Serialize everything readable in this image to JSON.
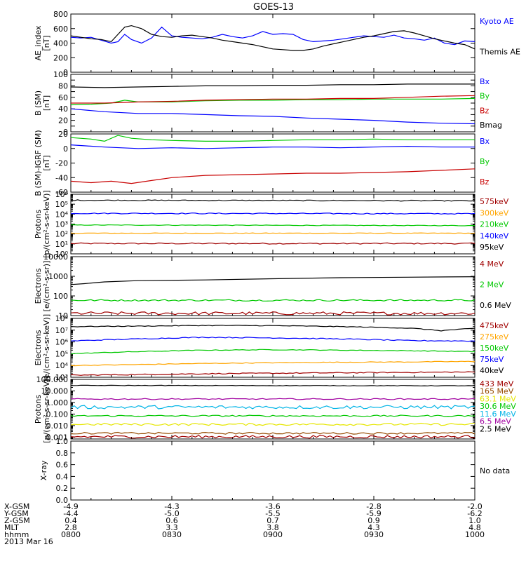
{
  "title": "GOES-13",
  "date": "2013 Mar 16",
  "colors": {
    "black": "#000000",
    "blue": "#0000ff",
    "green": "#00c800",
    "red": "#c80000",
    "orange": "#ffa500",
    "yellow": "#e6e600",
    "cyan": "#00b4e6",
    "purple": "#a000a0",
    "darkred": "#a00000",
    "brown": "#964b00"
  },
  "chart_data": [
    {
      "type": "line",
      "scale": "linear",
      "ylabel": "AE_index\n[nT]",
      "ylim": [
        0,
        800
      ],
      "yticks": [
        0,
        200,
        400,
        600,
        800
      ],
      "ytick_labels": [
        "0",
        "200",
        "400",
        "600",
        "800"
      ],
      "series": [
        {
          "name": "Kyoto AE",
          "color": "#0000ff",
          "x": [
            0,
            1.5,
            3,
            4.5,
            6,
            7,
            8,
            9,
            10.5,
            12,
            13.5,
            15,
            16.5,
            18,
            19.5,
            21,
            22.5,
            24,
            25.5,
            27,
            28.5,
            30,
            31.5,
            33,
            34.5,
            36,
            37.5,
            39,
            40.5,
            42,
            43.5,
            45,
            46.5,
            48,
            49.5,
            51,
            52.5,
            54,
            55.5,
            57,
            58.5,
            60
          ],
          "y": [
            480,
            470,
            480,
            440,
            400,
            420,
            520,
            450,
            400,
            470,
            620,
            500,
            480,
            470,
            460,
            480,
            520,
            490,
            470,
            500,
            560,
            520,
            530,
            520,
            450,
            420,
            430,
            440,
            460,
            480,
            500,
            490,
            480,
            510,
            470,
            460,
            440,
            470,
            400,
            380,
            430,
            420
          ]
        },
        {
          "name": "Themis AE",
          "color": "#000000",
          "x": [
            0,
            1.5,
            3,
            4.5,
            6,
            7,
            8,
            9,
            10.5,
            12,
            13.5,
            15,
            16.5,
            18,
            19.5,
            21,
            22.5,
            24,
            25.5,
            27,
            28.5,
            30,
            31.5,
            33,
            34.5,
            36,
            37.5,
            39,
            40.5,
            42,
            43.5,
            45,
            46.5,
            48,
            49.5,
            51,
            52.5,
            54,
            55.5,
            57,
            58.5,
            60
          ],
          "y": [
            500,
            480,
            460,
            450,
            420,
            520,
            620,
            640,
            600,
            520,
            490,
            480,
            500,
            510,
            490,
            470,
            440,
            420,
            400,
            380,
            350,
            320,
            310,
            300,
            300,
            320,
            360,
            390,
            420,
            450,
            480,
            500,
            530,
            560,
            570,
            540,
            500,
            460,
            430,
            400,
            380,
            320
          ]
        }
      ]
    },
    {
      "type": "line",
      "scale": "linear",
      "ylabel": "B (SM)\n[nT]",
      "ylim": [
        0,
        100
      ],
      "yticks": [
        0,
        10,
        20,
        30,
        40,
        50,
        60,
        70,
        80,
        90,
        100
      ],
      "ytick_labels": [
        "0",
        "",
        "20",
        "",
        "40",
        "",
        "60",
        "",
        "80",
        "",
        "100"
      ],
      "series": [
        {
          "name": "Bx",
          "color": "#0000ff",
          "x": [
            0,
            5,
            10,
            15,
            20,
            25,
            30,
            35,
            40,
            45,
            50,
            55,
            60
          ],
          "y": [
            40,
            35,
            32,
            32,
            30,
            28,
            27,
            24,
            22,
            20,
            17,
            15,
            14
          ]
        },
        {
          "name": "By",
          "color": "#00c800",
          "x": [
            0,
            3,
            6,
            8,
            10,
            15,
            20,
            25,
            30,
            35,
            40,
            45,
            50,
            55,
            60
          ],
          "y": [
            47,
            48,
            50,
            55,
            52,
            52,
            54,
            55,
            55,
            56,
            56,
            57,
            57,
            57,
            58
          ]
        },
        {
          "name": "Bz",
          "color": "#c80000",
          "x": [
            0,
            5,
            10,
            15,
            20,
            25,
            30,
            35,
            40,
            45,
            50,
            55,
            60
          ],
          "y": [
            50,
            50,
            52,
            53,
            55,
            56,
            57,
            57,
            58,
            58,
            60,
            62,
            63
          ]
        },
        {
          "name": "Bmag",
          "color": "#000000",
          "x": [
            0,
            5,
            10,
            15,
            20,
            25,
            30,
            35,
            40,
            45,
            50,
            55,
            60
          ],
          "y": [
            78,
            77,
            78,
            79,
            80,
            80,
            81,
            81,
            82,
            82,
            83,
            83,
            83
          ]
        }
      ]
    },
    {
      "type": "line",
      "scale": "linear",
      "ylabel": "B (SM)-IGRF (SM)\n[nT]",
      "ylim": [
        -60,
        20
      ],
      "yticks": [
        -60,
        -40,
        -20,
        0,
        20
      ],
      "ytick_labels": [
        "-60",
        "-40",
        "-20",
        "0",
        "20"
      ],
      "series": [
        {
          "name": "Bx",
          "color": "#0000ff",
          "x": [
            0,
            5,
            10,
            15,
            20,
            25,
            30,
            35,
            40,
            45,
            50,
            55,
            60
          ],
          "y": [
            5,
            2,
            0,
            1,
            0,
            1,
            2,
            2,
            1,
            2,
            3,
            2,
            2
          ]
        },
        {
          "name": "By",
          "color": "#00c800",
          "x": [
            0,
            3,
            5,
            7,
            9,
            12,
            15,
            20,
            25,
            30,
            35,
            40,
            45,
            50,
            55,
            60
          ],
          "y": [
            15,
            13,
            10,
            18,
            14,
            12,
            11,
            10,
            10,
            11,
            12,
            12,
            13,
            12,
            12,
            12
          ]
        },
        {
          "name": "Bz",
          "color": "#c80000",
          "x": [
            0,
            3,
            6,
            9,
            12,
            15,
            20,
            25,
            30,
            35,
            40,
            45,
            50,
            55,
            60
          ],
          "y": [
            -45,
            -47,
            -45,
            -48,
            -44,
            -40,
            -37,
            -36,
            -35,
            -34,
            -34,
            -33,
            -32,
            -30,
            -28
          ]
        }
      ]
    },
    {
      "type": "line",
      "scale": "log",
      "ylabel": "Protons\n[p/(cm²-s-sr-keV)]",
      "ylim": [
        1,
        1000000
      ],
      "yticks": [
        1,
        10,
        100,
        1000,
        10000,
        100000,
        1000000
      ],
      "ytick_labels": [
        "10⁰",
        "10¹",
        "10²",
        "10³",
        "10⁴",
        "10⁵",
        "10⁶"
      ],
      "series": [
        {
          "name": "575keV",
          "color": "#a00000",
          "x": [
            0,
            60
          ],
          "y": [
            11,
            11
          ],
          "noise": 0.06
        },
        {
          "name": "300keV",
          "color": "#ffa500",
          "x": [
            0,
            60
          ],
          "y": [
            120,
            120
          ],
          "noise": 0.03
        },
        {
          "name": "210keV",
          "color": "#00c800",
          "x": [
            0,
            60
          ],
          "y": [
            800,
            700
          ],
          "noise": 0.03
        },
        {
          "name": "140keV",
          "color": "#0000ff",
          "x": [
            0,
            60
          ],
          "y": [
            12000,
            11000
          ],
          "noise": 0.05
        },
        {
          "name": "95keV",
          "color": "#000000",
          "x": [
            0,
            60
          ],
          "y": [
            250000,
            220000
          ],
          "noise": 0.05
        }
      ]
    },
    {
      "type": "line",
      "scale": "log",
      "ylabel": "Electrons\n[e/(cm²-s-sr)]",
      "ylim": [
        10,
        10000
      ],
      "yticks": [
        10,
        100,
        1000,
        10000
      ],
      "ytick_labels": [
        "10",
        "100",
        "1000",
        "10000"
      ],
      "series": [
        {
          "name": "4 MeV",
          "color": "#a00000",
          "x": [
            0,
            60
          ],
          "y": [
            13,
            13
          ],
          "noise": 0.08
        },
        {
          "name": "2 MeV",
          "color": "#00c800",
          "x": [
            0,
            60
          ],
          "y": [
            60,
            60
          ],
          "noise": 0.04
        },
        {
          "name": "0.6 MeV",
          "color": "#000000",
          "x": [
            0,
            2,
            5,
            10,
            20,
            30,
            40,
            50,
            60
          ],
          "y": [
            380,
            420,
            520,
            600,
            650,
            750,
            850,
            900,
            950
          ]
        }
      ]
    },
    {
      "type": "line",
      "scale": "log",
      "ylabel": "Electrons\n[e/(cm²-s-sr-keV)]",
      "ylim": [
        1000,
        100000000
      ],
      "yticks": [
        1000,
        10000,
        100000,
        1000000,
        10000000,
        100000000
      ],
      "ytick_labels": [
        "10³",
        "10⁴",
        "10⁵",
        "10⁶",
        "10⁷",
        "10⁸"
      ],
      "series": [
        {
          "name": "475keV",
          "color": "#a00000",
          "x": [
            0,
            10,
            20,
            30,
            40,
            50,
            60
          ],
          "y": [
            1500,
            1700,
            2000,
            2200,
            2400,
            2600,
            2800
          ],
          "noise": 0.04
        },
        {
          "name": "275keV",
          "color": "#ffa500",
          "x": [
            0,
            10,
            20,
            30,
            40,
            50,
            60
          ],
          "y": [
            10000,
            12000,
            15000,
            17000,
            19000,
            20000,
            22000
          ],
          "noise": 0.03
        },
        {
          "name": "150keV",
          "color": "#00c800",
          "x": [
            0,
            10,
            20,
            30,
            40,
            50,
            60
          ],
          "y": [
            100000,
            150000,
            200000,
            220000,
            200000,
            180000,
            150000
          ],
          "noise": 0.03
        },
        {
          "name": "75keV",
          "color": "#0000ff",
          "x": [
            0,
            10,
            20,
            30,
            40,
            50,
            60
          ],
          "y": [
            1200000,
            1800000,
            2500000,
            2200000,
            1800000,
            1300000,
            1200000
          ],
          "noise": 0.04
        },
        {
          "name": "40keV",
          "color": "#000000",
          "x": [
            0,
            10,
            20,
            30,
            40,
            50,
            55,
            60
          ],
          "y": [
            20000000,
            22000000,
            25000000,
            24000000,
            20000000,
            15000000,
            9000000,
            14000000
          ],
          "noise": 0.03
        }
      ]
    },
    {
      "type": "line",
      "scale": "log",
      "ylabel": "Protons\n[p/(cm²-s-sr-keV)]",
      "ylim": [
        0.0007,
        100
      ],
      "yticks": [
        0.001,
        0.01,
        0.1,
        1,
        10,
        100
      ],
      "ytick_labels": [
        "0.001",
        "0.010",
        "0.100",
        "1.000",
        "10.000",
        "100.000"
      ],
      "series": [
        {
          "name": "433 MeV",
          "color": "#a00000",
          "x": [
            0,
            60
          ],
          "y": [
            0.0011,
            0.0011
          ],
          "noise": 0.12
        },
        {
          "name": "165 MeV",
          "color": "#964b00",
          "x": [
            0,
            60
          ],
          "y": [
            0.0022,
            0.0022
          ],
          "noise": 0.08
        },
        {
          "name": "63.1 MeV",
          "color": "#e6e600",
          "x": [
            0,
            60
          ],
          "y": [
            0.013,
            0.013
          ],
          "noise": 0.1
        },
        {
          "name": "30.6 MeV",
          "color": "#00c800",
          "x": [
            0,
            60
          ],
          "y": [
            0.07,
            0.07
          ],
          "noise": 0.06
        },
        {
          "name": "11.6 MeV",
          "color": "#00b4e6",
          "x": [
            0,
            60
          ],
          "y": [
            0.4,
            0.4
          ],
          "noise": 0.15
        },
        {
          "name": "6.5 MeV",
          "color": "#a000a0",
          "x": [
            0,
            60
          ],
          "y": [
            2,
            2
          ],
          "noise": 0.05
        },
        {
          "name": "2.5 MeV",
          "color": "#000000",
          "x": [
            0,
            60
          ],
          "y": [
            30,
            28
          ],
          "noise": 0.02
        }
      ]
    },
    {
      "type": "line",
      "scale": "linear",
      "ylabel": "X-ray",
      "ylim": [
        0,
        1
      ],
      "yticks": [
        0,
        0.2,
        0.4,
        0.6,
        0.8,
        1.0
      ],
      "ytick_labels": [
        "0.0",
        "0.2",
        "0.4",
        "0.6",
        "0.8",
        "1.0"
      ],
      "series": [],
      "note": "No data"
    }
  ],
  "xaxis": {
    "ticks": [
      0,
      15,
      30,
      45,
      60
    ],
    "rows": [
      {
        "label": "X-GSM",
        "values": [
          "-4.9",
          "-4.3",
          "-3.6",
          "-2.8",
          "-2.0"
        ]
      },
      {
        "label": "Y-GSM",
        "values": [
          "-4.4",
          "-5.0",
          "-5.5",
          "-5.9",
          "-6.2"
        ]
      },
      {
        "label": "Z-GSM",
        "values": [
          "0.4",
          "0.6",
          "0.7",
          "0.9",
          "1.0"
        ]
      },
      {
        "label": "MLT",
        "values": [
          "2.8",
          "3.3",
          "3.8",
          "4.3",
          "4.8"
        ]
      },
      {
        "label": "hhmm",
        "values": [
          "0800",
          "0830",
          "0900",
          "0930",
          "1000"
        ]
      }
    ]
  }
}
